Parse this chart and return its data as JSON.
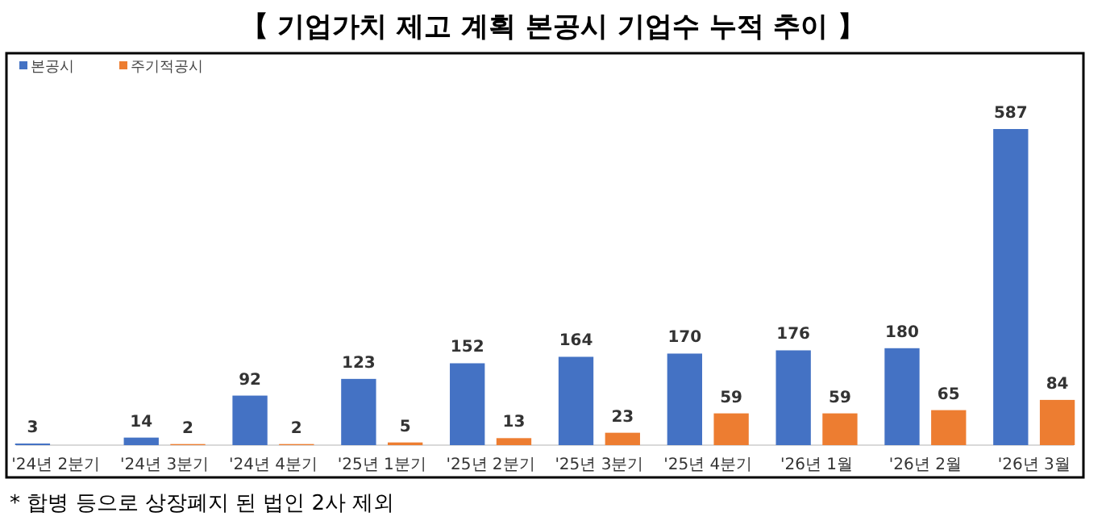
{
  "chart_data": {
    "type": "bar",
    "title": "【 기업가치 제고 계획 본공시 기업수 누적 추이 】",
    "categories": [
      "'24년 2분기",
      "'24년 3분기",
      "'24년 4분기",
      "'25년 1분기",
      "'25년 2분기",
      "'25년 3분기",
      "'25년 4분기",
      "'26년 1월",
      "'26년 2월",
      "'26년 3월"
    ],
    "series": [
      {
        "name": "본공시",
        "color": "#4472c4",
        "values": [
          3,
          14,
          92,
          123,
          152,
          164,
          170,
          176,
          180,
          587
        ]
      },
      {
        "name": "주기적공시",
        "color": "#ed7d31",
        "values": [
          null,
          2,
          2,
          5,
          13,
          23,
          59,
          59,
          65,
          84
        ]
      }
    ],
    "data_labels": true,
    "legend": "top left",
    "annotations": [
      "* 합병 등으로 상장폐지 된 법인 2사 제외"
    ]
  }
}
